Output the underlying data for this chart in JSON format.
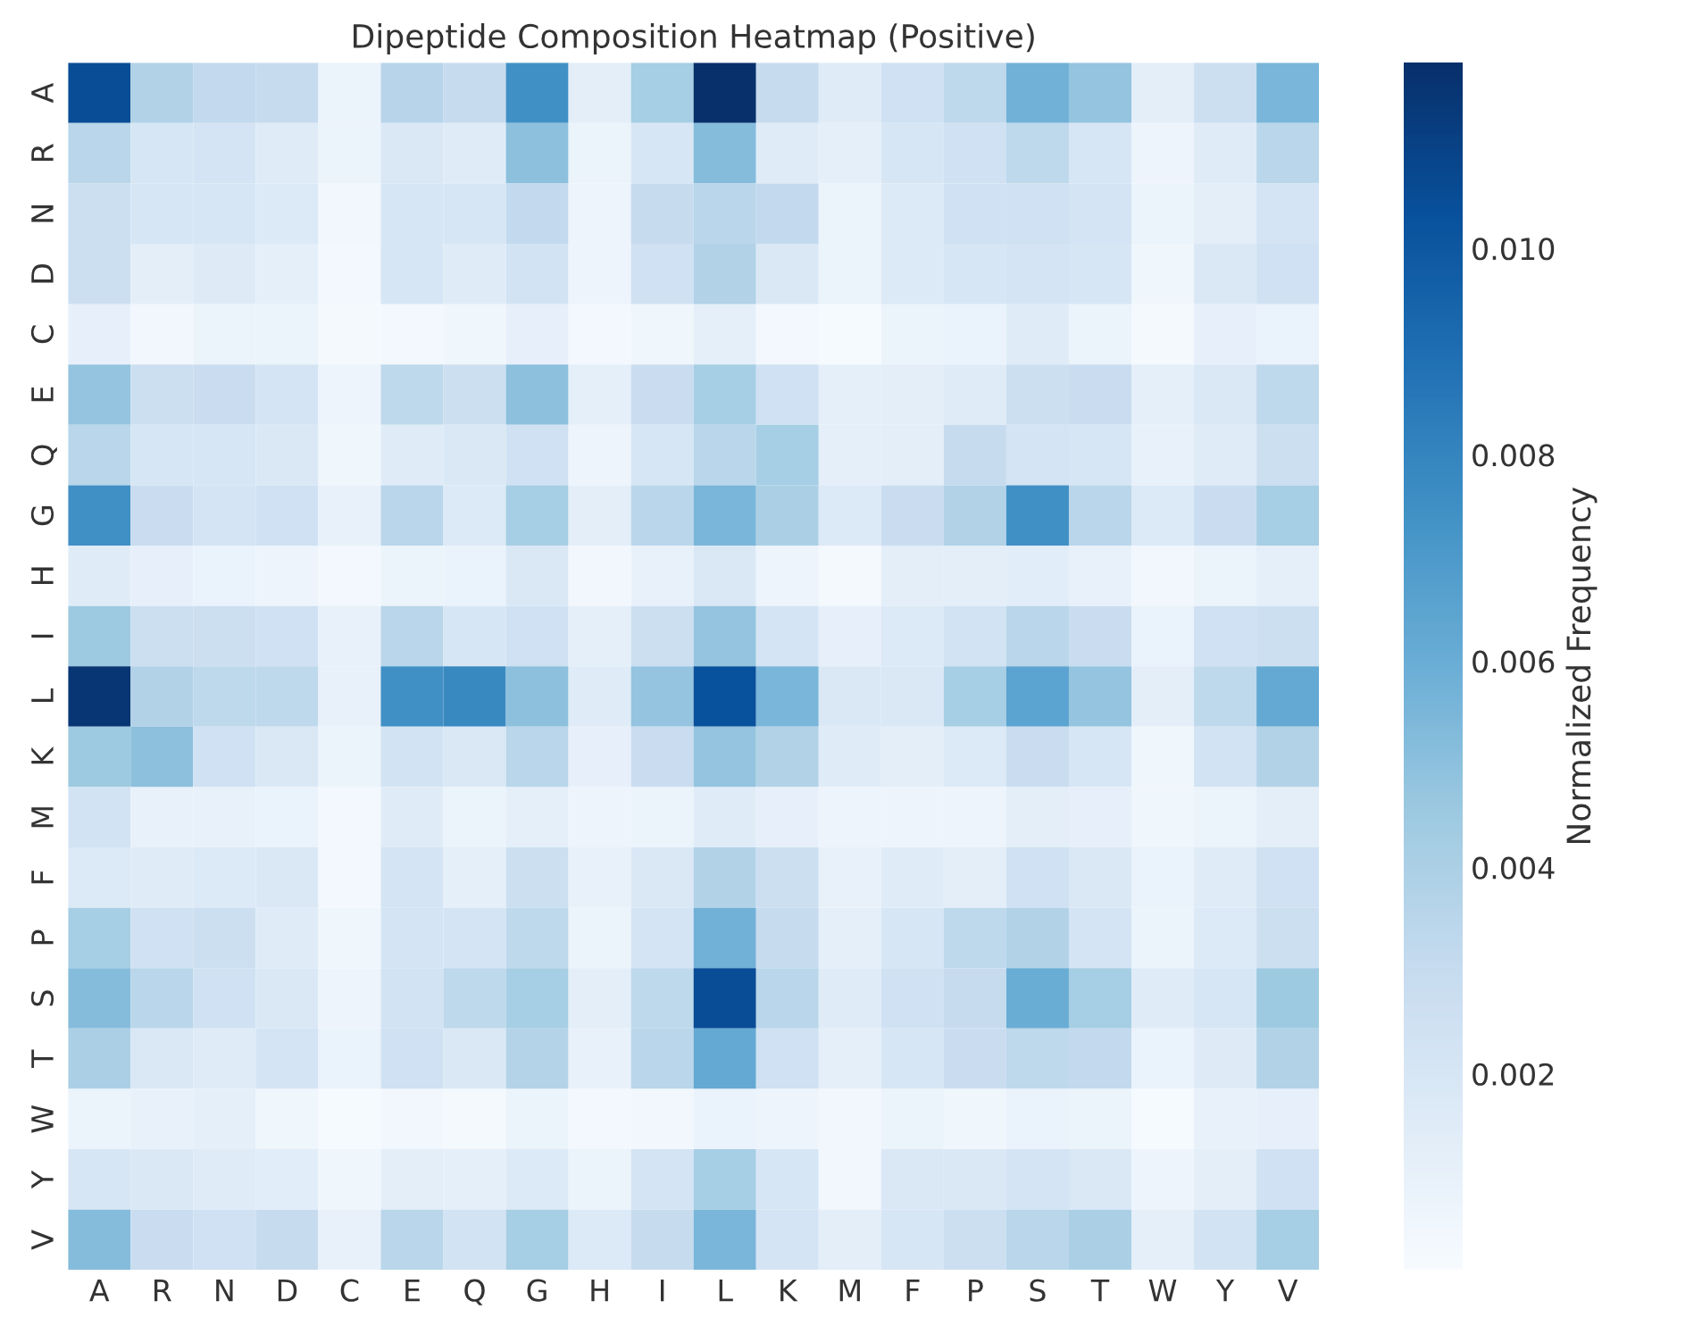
{
  "chart_data": {
    "type": "heatmap",
    "title": "Dipeptide Composition Heatmap (Positive)",
    "clabel": "Normalized Frequency",
    "categories": [
      "A",
      "R",
      "N",
      "D",
      "C",
      "E",
      "Q",
      "G",
      "H",
      "I",
      "L",
      "K",
      "M",
      "F",
      "P",
      "S",
      "T",
      "W",
      "Y",
      "V"
    ],
    "y_categories": [
      "A",
      "R",
      "N",
      "D",
      "C",
      "E",
      "Q",
      "G",
      "H",
      "I",
      "L",
      "K",
      "M",
      "F",
      "P",
      "S",
      "T",
      "W",
      "Y",
      "V"
    ],
    "clim": [
      0.0001,
      0.0118
    ],
    "cticks": [
      0.002,
      0.004,
      0.006,
      0.008,
      {
        "value": 0.01,
        "label": "0.010"
      }
    ],
    "cells": [
      [
        0.0105,
        0.0038,
        0.0032,
        0.003,
        0.0008,
        0.0036,
        0.003,
        0.0075,
        0.0013,
        0.0042,
        0.0118,
        0.003,
        0.0015,
        0.0025,
        0.0033,
        0.0058,
        0.0048,
        0.0013,
        0.0027,
        0.0055
      ],
      [
        0.0035,
        0.002,
        0.0022,
        0.0015,
        0.0008,
        0.0018,
        0.0015,
        0.005,
        0.0008,
        0.002,
        0.0052,
        0.0015,
        0.0012,
        0.002,
        0.0025,
        0.0033,
        0.002,
        0.0007,
        0.0015,
        0.0035
      ],
      [
        0.0027,
        0.002,
        0.002,
        0.0017,
        0.0005,
        0.002,
        0.002,
        0.0032,
        0.0007,
        0.003,
        0.0035,
        0.0032,
        0.0008,
        0.0017,
        0.0025,
        0.0025,
        0.0022,
        0.0008,
        0.0013,
        0.0022
      ],
      [
        0.0027,
        0.0013,
        0.0016,
        0.0012,
        0.0004,
        0.002,
        0.0015,
        0.0023,
        0.0007,
        0.0025,
        0.0038,
        0.0018,
        0.0008,
        0.0017,
        0.002,
        0.0022,
        0.002,
        0.0006,
        0.0018,
        0.0025
      ],
      [
        0.0011,
        0.0005,
        0.0008,
        0.0008,
        0.0003,
        0.0004,
        0.0006,
        0.0011,
        0.0004,
        0.0006,
        0.0012,
        0.0004,
        0.0002,
        0.0008,
        0.0009,
        0.0015,
        0.0008,
        0.0003,
        0.0011,
        0.0009
      ],
      [
        0.0048,
        0.0027,
        0.0028,
        0.0022,
        0.0007,
        0.0033,
        0.0027,
        0.005,
        0.0012,
        0.0028,
        0.0042,
        0.0025,
        0.0012,
        0.0013,
        0.0015,
        0.0027,
        0.0028,
        0.0012,
        0.0018,
        0.0033
      ],
      [
        0.0035,
        0.002,
        0.002,
        0.0018,
        0.0006,
        0.0015,
        0.0018,
        0.0025,
        0.0007,
        0.002,
        0.0035,
        0.0042,
        0.0012,
        0.0013,
        0.003,
        0.0022,
        0.002,
        0.001,
        0.0015,
        0.0027
      ],
      [
        0.0075,
        0.0028,
        0.0022,
        0.0025,
        0.001,
        0.0035,
        0.0017,
        0.0042,
        0.0013,
        0.0035,
        0.0055,
        0.004,
        0.0017,
        0.0028,
        0.0038,
        0.0075,
        0.0035,
        0.0017,
        0.0028,
        0.0042
      ],
      [
        0.0015,
        0.0011,
        0.0009,
        0.0007,
        0.0004,
        0.0008,
        0.0009,
        0.0018,
        0.0005,
        0.001,
        0.0018,
        0.0007,
        0.0003,
        0.0013,
        0.0013,
        0.0014,
        0.001,
        0.0005,
        0.0008,
        0.0012
      ],
      [
        0.0045,
        0.0027,
        0.0027,
        0.0025,
        0.001,
        0.0035,
        0.002,
        0.0025,
        0.0012,
        0.0027,
        0.0048,
        0.0022,
        0.0011,
        0.0017,
        0.0023,
        0.0035,
        0.0028,
        0.0009,
        0.0025,
        0.0027
      ],
      [
        0.0115,
        0.0038,
        0.0033,
        0.0033,
        0.001,
        0.0075,
        0.0078,
        0.005,
        0.0015,
        0.0048,
        0.0103,
        0.0055,
        0.0018,
        0.0018,
        0.0042,
        0.0065,
        0.0048,
        0.0013,
        0.0033,
        0.0062
      ],
      [
        0.0045,
        0.005,
        0.0025,
        0.0018,
        0.0008,
        0.0023,
        0.0018,
        0.0035,
        0.0011,
        0.0028,
        0.0048,
        0.0038,
        0.0015,
        0.0013,
        0.0017,
        0.0028,
        0.002,
        0.0006,
        0.0023,
        0.0038
      ],
      [
        0.0023,
        0.001,
        0.001,
        0.0009,
        0.0004,
        0.0015,
        0.0008,
        0.0012,
        0.0007,
        0.0008,
        0.0015,
        0.0011,
        0.0007,
        0.0007,
        0.0007,
        0.0013,
        0.0011,
        0.0006,
        0.0008,
        0.0013
      ],
      [
        0.0017,
        0.0015,
        0.0017,
        0.0018,
        0.0004,
        0.0022,
        0.0012,
        0.0027,
        0.001,
        0.0018,
        0.0038,
        0.0027,
        0.001,
        0.0015,
        0.0013,
        0.0025,
        0.0018,
        0.0009,
        0.0015,
        0.0025
      ],
      [
        0.0042,
        0.0025,
        0.0027,
        0.0015,
        0.0006,
        0.0022,
        0.0022,
        0.0033,
        0.0008,
        0.0022,
        0.0058,
        0.003,
        0.0012,
        0.002,
        0.0033,
        0.0038,
        0.0022,
        0.0008,
        0.0017,
        0.0027
      ],
      [
        0.0052,
        0.0035,
        0.0025,
        0.0018,
        0.0007,
        0.0023,
        0.0033,
        0.0042,
        0.0013,
        0.0033,
        0.0105,
        0.0035,
        0.0015,
        0.0025,
        0.003,
        0.006,
        0.0042,
        0.0015,
        0.002,
        0.0045
      ],
      [
        0.004,
        0.0018,
        0.0015,
        0.0022,
        0.0009,
        0.0025,
        0.0018,
        0.0037,
        0.001,
        0.0035,
        0.0062,
        0.0025,
        0.0012,
        0.002,
        0.0028,
        0.0033,
        0.0032,
        0.0009,
        0.0016,
        0.0038
      ],
      [
        0.0008,
        0.001,
        0.0012,
        0.0006,
        0.0002,
        0.0005,
        0.0003,
        0.0008,
        0.0004,
        0.0005,
        0.0009,
        0.0007,
        0.0005,
        0.0008,
        0.0006,
        0.0009,
        0.0008,
        0.0002,
        0.001,
        0.0011
      ],
      [
        0.002,
        0.0018,
        0.0015,
        0.0014,
        0.0006,
        0.0013,
        0.0012,
        0.0017,
        0.0008,
        0.0022,
        0.0042,
        0.002,
        0.0005,
        0.0018,
        0.0018,
        0.0022,
        0.0018,
        0.0007,
        0.0013,
        0.0025
      ],
      [
        0.0052,
        0.0028,
        0.0025,
        0.003,
        0.001,
        0.0035,
        0.0023,
        0.0042,
        0.0017,
        0.003,
        0.0055,
        0.0022,
        0.0013,
        0.002,
        0.0027,
        0.0035,
        0.004,
        0.0012,
        0.0023,
        0.0042
      ]
    ]
  }
}
